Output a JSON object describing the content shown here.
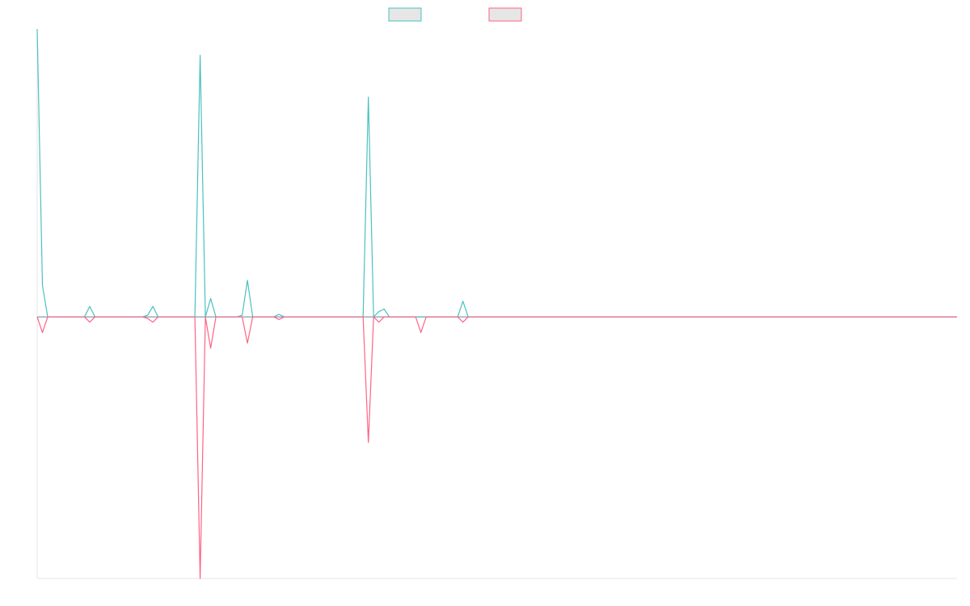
{
  "colors": {
    "series_up": "#4bc0c0",
    "series_down": "#ff6384",
    "legend_fill": "#e6e6e6",
    "axis": "#e6e6e6",
    "zero_line": "#7f8fa6"
  },
  "chart_data": {
    "type": "line",
    "title": "",
    "xlabel": "",
    "ylabel": "",
    "grid": false,
    "legend_position": "top-center",
    "x_range": [
      0,
      175
    ],
    "ylim": [
      -50,
      55
    ],
    "series": [
      {
        "points": [
          [
            0,
            55
          ],
          [
            1,
            6
          ],
          [
            2,
            0
          ],
          [
            3,
            0
          ],
          [
            4,
            0
          ],
          [
            5,
            0
          ],
          [
            6,
            0
          ],
          [
            7,
            0
          ],
          [
            8,
            0
          ],
          [
            9,
            0
          ],
          [
            10,
            2
          ],
          [
            11,
            0
          ],
          [
            20,
            0
          ],
          [
            21,
            0.3
          ],
          [
            22,
            2
          ],
          [
            23,
            0
          ],
          [
            30,
            0
          ],
          [
            31,
            50
          ],
          [
            32,
            0
          ],
          [
            33,
            3.5
          ],
          [
            34,
            0
          ],
          [
            38,
            0
          ],
          [
            39,
            0.3
          ],
          [
            40,
            7
          ],
          [
            41,
            0
          ],
          [
            45,
            0
          ],
          [
            46,
            0.5
          ],
          [
            47,
            0
          ],
          [
            62,
            0
          ],
          [
            63,
            42
          ],
          [
            64,
            0
          ],
          [
            65,
            1
          ],
          [
            66,
            1.5
          ],
          [
            67,
            0
          ],
          [
            80,
            0
          ],
          [
            81,
            3
          ],
          [
            82,
            0
          ],
          [
            175,
            0
          ]
        ]
      },
      {
        "points": [
          [
            0,
            0
          ],
          [
            1,
            -3
          ],
          [
            2,
            0
          ],
          [
            3,
            0
          ],
          [
            4,
            0
          ],
          [
            5,
            0
          ],
          [
            6,
            0
          ],
          [
            7,
            0
          ],
          [
            8,
            0
          ],
          [
            9,
            0
          ],
          [
            10,
            -1
          ],
          [
            11,
            0
          ],
          [
            20,
            0
          ],
          [
            21,
            -0.3
          ],
          [
            22,
            -1
          ],
          [
            23,
            0
          ],
          [
            30,
            0
          ],
          [
            31,
            -50
          ],
          [
            32,
            0
          ],
          [
            33,
            -6
          ],
          [
            34,
            0
          ],
          [
            38,
            0
          ],
          [
            39,
            0
          ],
          [
            40,
            -5
          ],
          [
            41,
            0
          ],
          [
            45,
            0
          ],
          [
            46,
            -0.5
          ],
          [
            47,
            0
          ],
          [
            62,
            0
          ],
          [
            63,
            -24
          ],
          [
            64,
            0
          ],
          [
            65,
            -1
          ],
          [
            66,
            0
          ],
          [
            72,
            0
          ],
          [
            73,
            -3
          ],
          [
            74,
            0
          ],
          [
            80,
            0
          ],
          [
            81,
            -1
          ],
          [
            82,
            0
          ],
          [
            175,
            0
          ]
        ]
      }
    ]
  }
}
